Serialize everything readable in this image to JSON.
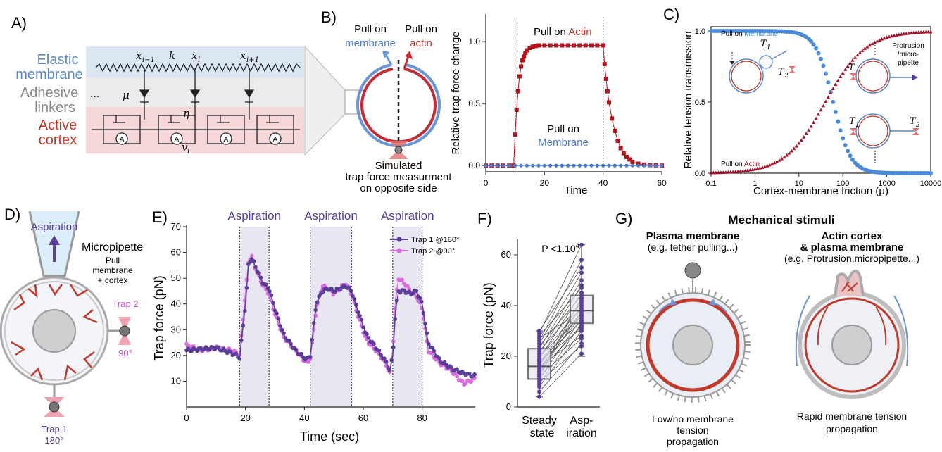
{
  "panels": {
    "A": {
      "label": "A)",
      "rows": {
        "membrane": [
          "Elastic",
          "membrane"
        ],
        "linkers": [
          "Adhesive",
          "linkers"
        ],
        "cortex": [
          "Active",
          "cortex"
        ]
      },
      "ellipsis": "...",
      "symbols": {
        "xim1": "x",
        "xim1_sub": "i−1",
        "k": "k",
        "xi": "x",
        "xi_sub": "i",
        "xip1": "x",
        "xip1_sub": "i+1",
        "mu": "μ",
        "eta": "η",
        "vi": "v",
        "vi_sub": "i",
        "motor": "A"
      },
      "colors": {
        "membrane": "#5b86c5",
        "linkers": "#8a8a8a",
        "cortex": "#c0392b",
        "membrane_bg": "#dbe6f3",
        "linkers_bg": "#ebebeb",
        "cortex_bg": "#f5d7da"
      }
    },
    "B": {
      "label": "B)",
      "pull_membrane": [
        "Pull on",
        "membrane"
      ],
      "pull_actin": [
        "Pull on",
        "actin"
      ],
      "caption": [
        "Simulated",
        "trap force measurment",
        "on opposite side"
      ],
      "plot": {
        "ylabel": "Relative trap force change",
        "xlabel": "Time",
        "xticks": [
          "0",
          "20",
          "40",
          "60"
        ],
        "yticks": [
          "0.0",
          "0.5",
          "1.0"
        ],
        "annot_actin_prefix": "Pull on ",
        "annot_actin_word": "Actin",
        "annot_mem_line1": "Pull on",
        "annot_mem_line2": "Membrane"
      }
    },
    "C": {
      "label": "C)",
      "ylabel": "Relative tension transmission",
      "xlabel": "Cortex-membrane friction (μ)",
      "xticks": [
        "0.1",
        "1",
        "10",
        "100",
        "1000",
        "10000"
      ],
      "yticks": [
        "0.0",
        "0.5",
        "1.0"
      ],
      "legend_mem_prefix": "Pull on ",
      "legend_mem_word": "Membrane",
      "legend_actin_prefix": "Pull on ",
      "legend_actin_word": "Actin",
      "insets": {
        "t1": "T",
        "t1_sub": "1",
        "t2": "T",
        "t2_sub": "2",
        "t": "T",
        "protrusion": [
          "Protrusion",
          "/micro-",
          "pipette"
        ],
        "b_t1": "T",
        "b_t1_sub": "1",
        "b_t2": "T",
        "b_t2_sub": "2"
      }
    },
    "D": {
      "label": "D)",
      "aspiration": "Aspiration",
      "micropipette": "Micropipette",
      "pull_text": [
        "Pull",
        "membrane",
        "+ cortex"
      ],
      "trap2": [
        "Trap 2",
        "90°"
      ],
      "trap1": [
        "Trap 1",
        "180°"
      ]
    },
    "E": {
      "label": "E)",
      "ylabel": "Trap force (pN)",
      "xlabel": "Time (sec)",
      "xticks": [
        "0",
        "20",
        "40",
        "60",
        "80"
      ],
      "yticks": [
        "10",
        "20",
        "30",
        "40",
        "50",
        "60",
        "70"
      ],
      "aspiration_labels": [
        "Aspiration",
        "Aspiration",
        "Aspiration"
      ],
      "legend": [
        "Trap 1 @180°",
        "Trap 2 @90°"
      ]
    },
    "F": {
      "label": "F)",
      "ylabel": "Trap force (pN)",
      "pvalue": "P <1.10",
      "pvalue_exp": "4",
      "yticks": [
        "0",
        "20",
        "40",
        "60"
      ],
      "categories": [
        [
          "Steady",
          "state"
        ],
        [
          "Asp-",
          "iration"
        ]
      ]
    },
    "G": {
      "label": "G)",
      "title": "Mechanical stimuli",
      "left_title": "Plasma membrane",
      "left_sub": "(e.g. tether pulling...)",
      "right_title": [
        "Actin cortex",
        "& plasma membrane"
      ],
      "right_sub": "(e.g. Protrusion,micropipette...)",
      "left_caption": [
        "Low/no membrane",
        "tension",
        "propagation"
      ],
      "right_caption": [
        "Rapid membrane tension",
        "propagation"
      ]
    }
  },
  "chart_data": [
    {
      "panel": "B",
      "type": "scatter",
      "xlabel": "Time",
      "ylabel": "Relative trap force change",
      "xlim": [
        0,
        60
      ],
      "ylim": [
        -0.05,
        1.2
      ],
      "series": [
        {
          "name": "Pull on Actin",
          "color": "#b5121b",
          "x": [
            0,
            2,
            4,
            6,
            8,
            9.5,
            10,
            10.5,
            11,
            11.5,
            12,
            12.5,
            13,
            13.5,
            14,
            15,
            16,
            17,
            18,
            20,
            22,
            24,
            26,
            28,
            30,
            32,
            34,
            36,
            38,
            40,
            40.5,
            41,
            41.5,
            42,
            43,
            44,
            45,
            46,
            47,
            48,
            49,
            50,
            52,
            54,
            56,
            58,
            60
          ],
          "y": [
            0,
            0,
            0,
            0,
            0,
            0,
            0.25,
            0.45,
            0.6,
            0.72,
            0.8,
            0.85,
            0.88,
            0.91,
            0.93,
            0.95,
            0.96,
            0.965,
            0.97,
            0.97,
            0.97,
            0.97,
            0.97,
            0.97,
            0.97,
            0.97,
            0.97,
            0.97,
            0.97,
            0.97,
            0.82,
            0.7,
            0.6,
            0.51,
            0.38,
            0.28,
            0.2,
            0.14,
            0.1,
            0.07,
            0.05,
            0.03,
            0.015,
            0.008,
            0.004,
            0.002,
            0.0
          ]
        },
        {
          "name": "Pull on Membrane",
          "color": "#4a7bd0",
          "x": [
            0,
            2,
            4,
            6,
            8,
            10,
            12,
            14,
            16,
            18,
            20,
            22,
            24,
            26,
            28,
            30,
            32,
            34,
            36,
            38,
            40,
            42,
            44,
            46,
            48,
            50,
            52,
            54,
            56,
            58,
            60
          ],
          "y": [
            0,
            0,
            0,
            0,
            0,
            0,
            0,
            0,
            0,
            0,
            0,
            0,
            0,
            0,
            0,
            0,
            0,
            0,
            0,
            0,
            0,
            0,
            0,
            0,
            0,
            0,
            0,
            0,
            0,
            0,
            0
          ]
        }
      ],
      "vlines": [
        10,
        40
      ]
    },
    {
      "panel": "C",
      "type": "scatter",
      "xlabel": "Cortex-membrane friction (μ)",
      "ylabel": "Relative tension transmission",
      "xscale": "log",
      "xlim": [
        0.1,
        10000
      ],
      "ylim": [
        0,
        1
      ],
      "series": [
        {
          "name": "Pull on Membrane",
          "color": "#4a8ad8",
          "model": "decreasing sigmoid",
          "midpoint": 60,
          "x": [
            0.1,
            1,
            10,
            30,
            60,
            100,
            300,
            1000,
            10000
          ],
          "y": [
            1.0,
            1.0,
            0.98,
            0.75,
            0.5,
            0.3,
            0.05,
            0.0,
            0.0
          ]
        },
        {
          "name": "Pull on Actin",
          "color": "#a3122b",
          "model": "increasing sigmoid",
          "midpoint": 40,
          "x": [
            0.1,
            1,
            10,
            30,
            40,
            100,
            300,
            1000,
            10000
          ],
          "y": [
            0.0,
            0.03,
            0.2,
            0.43,
            0.5,
            0.72,
            0.92,
            0.99,
            1.0
          ]
        }
      ]
    },
    {
      "panel": "E",
      "type": "scatter",
      "xlabel": "Time (sec)",
      "ylabel": "Trap force (pN)",
      "xlim": [
        0,
        98
      ],
      "ylim": [
        0,
        70
      ],
      "aspiration_windows": [
        [
          18,
          28
        ],
        [
          42,
          56
        ],
        [
          70,
          80
        ]
      ],
      "series": [
        {
          "name": "Trap 1 @180°",
          "color": "#5a3d99",
          "x": [
            0,
            5,
            10,
            15,
            17,
            18,
            20,
            21,
            22,
            24,
            26,
            28,
            30,
            33,
            37,
            40,
            41,
            42,
            43,
            44,
            46,
            48,
            50,
            52,
            54,
            56,
            58,
            61,
            65,
            68,
            69,
            70,
            71,
            72,
            74,
            76,
            78,
            80,
            82,
            86,
            90,
            94,
            98
          ],
          "y": [
            22,
            22.5,
            23,
            21,
            20,
            19,
            40,
            55,
            58,
            53,
            48,
            46,
            38,
            28,
            22,
            19,
            18.5,
            20,
            30,
            40,
            45,
            46,
            45,
            46,
            47,
            45,
            38,
            28,
            22,
            17,
            14,
            20,
            38,
            45,
            45,
            44,
            45,
            40,
            25,
            18,
            15,
            13,
            12
          ]
        },
        {
          "name": "Trap 2 @90°",
          "color": "#d86be0",
          "x": [
            0,
            5,
            10,
            15,
            17,
            18,
            20,
            21,
            22,
            24,
            26,
            28,
            30,
            33,
            37,
            40,
            41,
            42,
            43,
            44,
            46,
            48,
            50,
            52,
            54,
            56,
            58,
            61,
            65,
            68,
            69,
            70,
            71,
            72,
            74,
            76,
            78,
            80,
            82,
            86,
            90,
            94,
            98
          ],
          "y": [
            24,
            22,
            23,
            22,
            21,
            20,
            44,
            56,
            59,
            52,
            47,
            44,
            36,
            27,
            22,
            18,
            17,
            19,
            28,
            38,
            47,
            46,
            44,
            46,
            48,
            44,
            36,
            26,
            21,
            16,
            13,
            22,
            42,
            50,
            48,
            45,
            43,
            38,
            22,
            17,
            14,
            9,
            11
          ]
        }
      ]
    },
    {
      "panel": "F",
      "type": "box",
      "ylabel": "Trap force (pN)",
      "categories": [
        "Steady state",
        "Asp-iration"
      ],
      "ylim": [
        0,
        65
      ],
      "boxes": [
        {
          "category": "Steady state",
          "min": 4,
          "q1": 11,
          "median": 16,
          "q3": 23,
          "max": 30
        },
        {
          "category": "Asp-iration",
          "min": 20,
          "q1": 33,
          "median": 38,
          "q3": 44,
          "max": 64
        }
      ],
      "pairs": [
        [
          4,
          21
        ],
        [
          6,
          25
        ],
        [
          8,
          30
        ],
        [
          9,
          33
        ],
        [
          10,
          24
        ],
        [
          11,
          35
        ],
        [
          12,
          27
        ],
        [
          13,
          38
        ],
        [
          14,
          32
        ],
        [
          14,
          40
        ],
        [
          15,
          36
        ],
        [
          16,
          28
        ],
        [
          16,
          42
        ],
        [
          17,
          37
        ],
        [
          18,
          34
        ],
        [
          19,
          45
        ],
        [
          20,
          39
        ],
        [
          21,
          48
        ],
        [
          22,
          41
        ],
        [
          23,
          50
        ],
        [
          24,
          44
        ],
        [
          25,
          53
        ],
        [
          26,
          58
        ],
        [
          27,
          38
        ],
        [
          28,
          47
        ],
        [
          29,
          64
        ],
        [
          30,
          55
        ],
        [
          18,
          31
        ],
        [
          12,
          43
        ],
        [
          20,
          36
        ]
      ]
    }
  ]
}
